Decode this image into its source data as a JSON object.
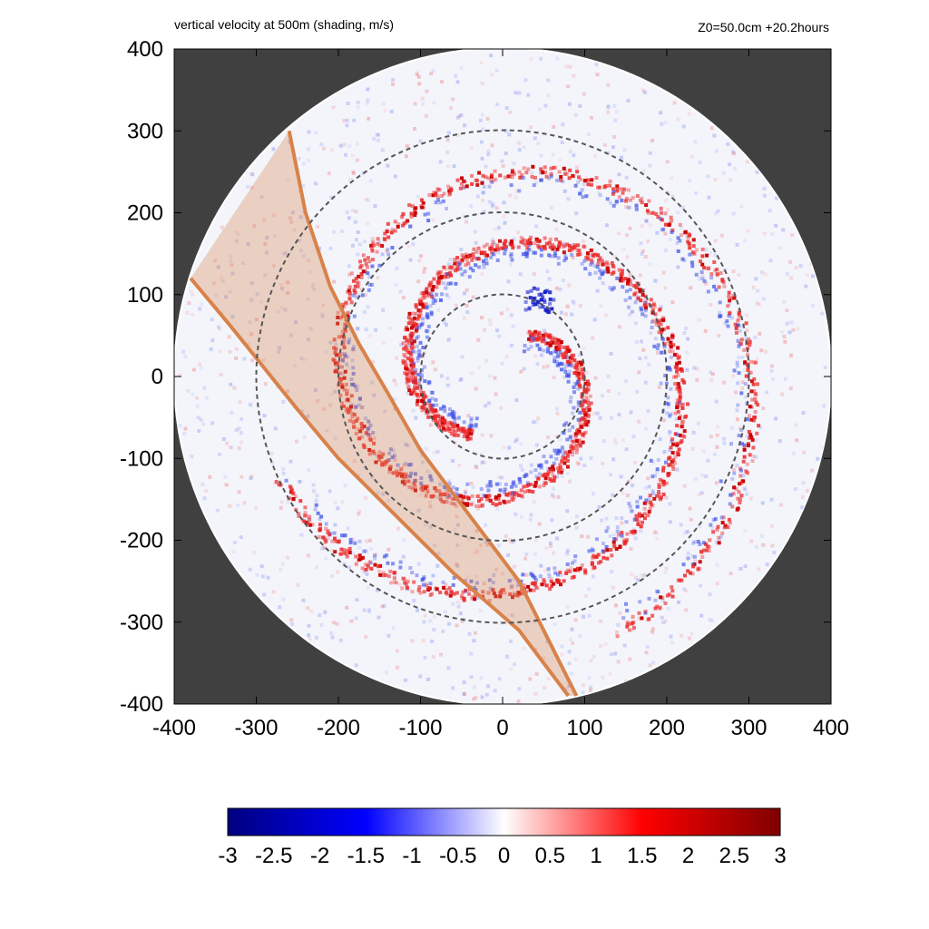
{
  "chart_data": {
    "type": "heatmap",
    "title": "vertical velocity at 500m (shading, m/s)",
    "subtitle": "Z0=50.0cm  +20.2hours",
    "xlim": [
      -400,
      400
    ],
    "ylim": [
      -400,
      400
    ],
    "x_ticks": [
      "-400",
      "-300",
      "-200",
      "-100",
      "0",
      "100",
      "200",
      "300",
      "400"
    ],
    "y_ticks": [
      "400",
      "300",
      "200",
      "100",
      "0",
      "-100",
      "-200",
      "-300",
      "-400"
    ],
    "domain_radius": 400,
    "reference_circles_radii": [
      100,
      200,
      300
    ],
    "colorbar": {
      "min": -3,
      "max": 3,
      "ticks": [
        "-3",
        "-2.5",
        "-2",
        "-1.5",
        "-1",
        "-0.5",
        "0",
        "0.5",
        "1",
        "1.5",
        "2",
        "2.5",
        "3"
      ],
      "colors": [
        "#00007f",
        "#0000ff",
        "#ffffff",
        "#ff0000",
        "#7f0000"
      ]
    },
    "shaded_swath": {
      "left_edge": [
        [
          -380,
          120
        ],
        [
          -330,
          60
        ],
        [
          -290,
          10
        ],
        [
          -250,
          -40
        ],
        [
          -200,
          -100
        ],
        [
          -140,
          -160
        ],
        [
          -60,
          -240
        ],
        [
          20,
          -310
        ],
        [
          80,
          -390
        ]
      ],
      "right_edge": [
        [
          -260,
          300
        ],
        [
          -240,
          200
        ],
        [
          -210,
          110
        ],
        [
          -175,
          40
        ],
        [
          -140,
          -20
        ],
        [
          -100,
          -90
        ],
        [
          -40,
          -170
        ],
        [
          20,
          -250
        ],
        [
          90,
          -390
        ]
      ],
      "color": "#d8824a"
    },
    "rainbands": [
      {
        "sign": "positive",
        "r_start": 60,
        "r_end": 340,
        "theta_start": 60,
        "turns": 1.35
      },
      {
        "sign": "positive",
        "r_start": 80,
        "r_end": 300,
        "theta_start": 240,
        "turns": 1.1
      }
    ],
    "background_outside": "#404040"
  }
}
